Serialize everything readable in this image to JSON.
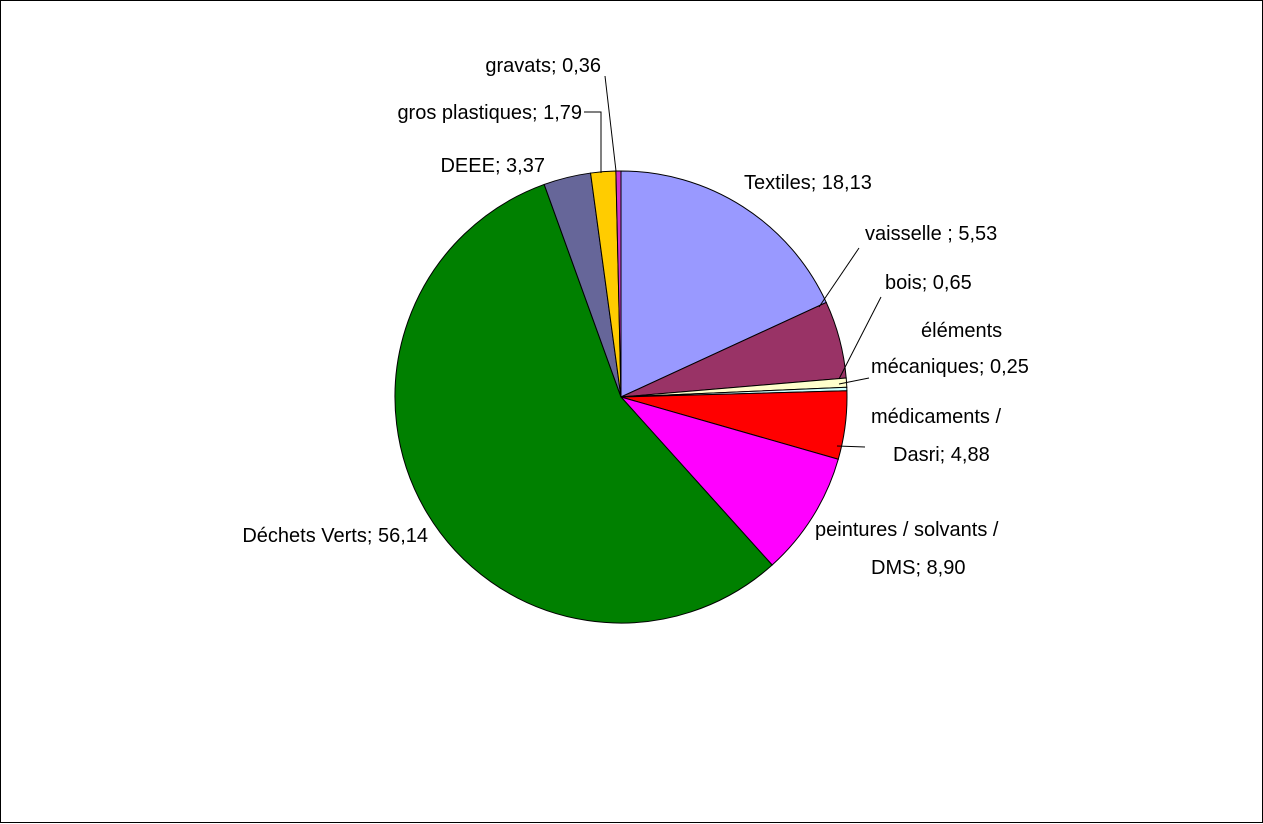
{
  "chart_data": {
    "type": "pie",
    "title": "",
    "slices": [
      {
        "label": "Textiles",
        "value": 18.13,
        "value_text": "18,13",
        "color": "#9999ff",
        "label_lines": [
          "Textiles; 18,13"
        ]
      },
      {
        "label": "vaisselle",
        "value": 5.53,
        "value_text": "5,53",
        "color": "#993366",
        "label_lines": [
          "vaisselle ; 5,53"
        ]
      },
      {
        "label": "bois",
        "value": 0.65,
        "value_text": "0,65",
        "color": "#ffffcc",
        "label_lines": [
          "bois; 0,65"
        ]
      },
      {
        "label": "éléments mécaniques",
        "value": 0.25,
        "value_text": "0,25",
        "color": "#ccffff",
        "label_lines": [
          "éléments",
          "mécaniques; 0,25"
        ]
      },
      {
        "label": "médicaments / Dasri",
        "value": 4.88,
        "value_text": "4,88",
        "color": "#ff0000",
        "label_lines": [
          "médicaments /",
          "Dasri; 4,88"
        ]
      },
      {
        "label": "peintures / solvants / DMS",
        "value": 8.9,
        "value_text": "8,90",
        "color": "#ff00ff",
        "label_lines": [
          "peintures / solvants /",
          "DMS; 8,90"
        ]
      },
      {
        "label": "Déchets Verts",
        "value": 56.14,
        "value_text": "56,14",
        "color": "#008000",
        "label_lines": [
          "Déchets Verts; 56,14"
        ]
      },
      {
        "label": "DEEE",
        "value": 3.37,
        "value_text": "3,37",
        "color": "#666699",
        "label_lines": [
          "DEEE; 3,37"
        ]
      },
      {
        "label": "gros plastiques",
        "value": 1.79,
        "value_text": "1,79",
        "color": "#ffcc00",
        "label_lines": [
          "gros plastiques; 1,79"
        ]
      },
      {
        "label": "gravats",
        "value": 0.36,
        "value_text": "0,36",
        "color": "#cc33cc",
        "label_lines": [
          "gravats; 0,36"
        ]
      }
    ],
    "start_angle": "12 o'clock",
    "direction": "clockwise",
    "labels_outside": true,
    "legend": "none"
  }
}
